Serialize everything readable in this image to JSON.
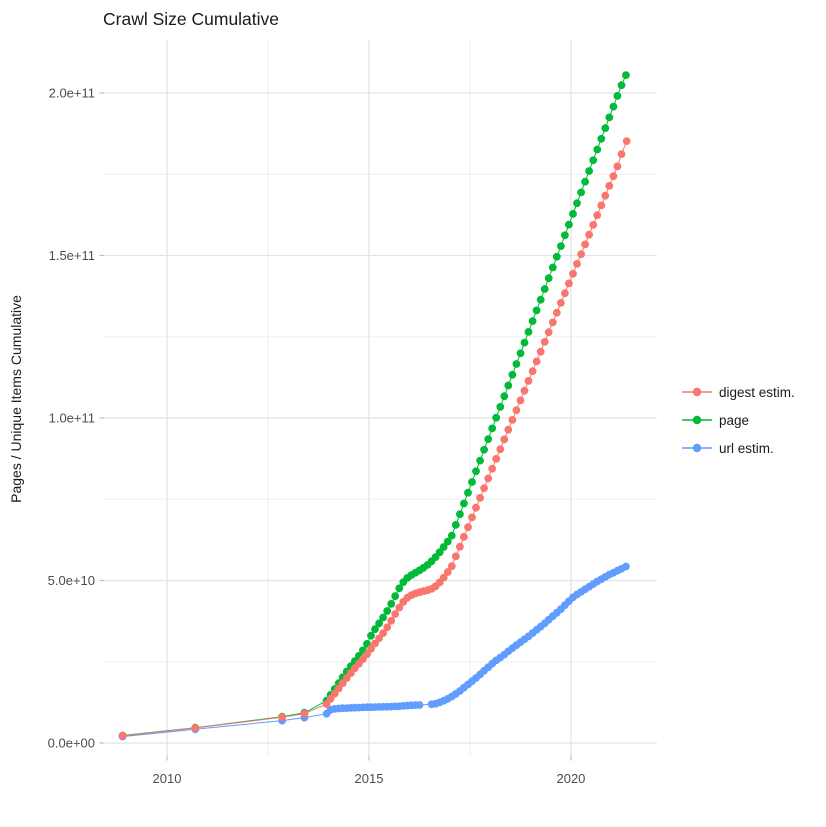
{
  "chart_data": {
    "type": "scatter",
    "title": "Crawl Size Cumulative",
    "xlabel": "",
    "ylabel": "Pages / Unique Items Cumulative",
    "grid": "on",
    "x_axis": {
      "range": [
        2008.44,
        2022.13
      ],
      "ticks": [
        2010,
        2015,
        2020
      ],
      "tick_labels": [
        "2010",
        "2015",
        "2020"
      ],
      "minor_ticks": [
        2012.5,
        2017.5
      ]
    },
    "y_axis": {
      "range": [
        -4000000000.0,
        216300000000.0
      ],
      "ticks": [
        0,
        50000000000.0,
        100000000000.0,
        150000000000.0,
        200000000000.0
      ],
      "tick_labels": [
        "0.0e+00",
        "5.0e+10",
        "1.0e+11",
        "1.5e+11",
        "2.0e+11"
      ],
      "minor_ticks": [
        25000000000.0,
        75000000000.0,
        125000000000.0,
        175000000000.0
      ]
    },
    "legend": {
      "position": "right",
      "entries": [
        {
          "label": "digest estim.",
          "color": "#F8766D"
        },
        {
          "label": "page",
          "color": "#00BA38"
        },
        {
          "label": "url estim.",
          "color": "#619CFF"
        }
      ]
    },
    "series": [
      {
        "name": "url estim.",
        "color": "#619CFF",
        "points": [
          [
            2008.9,
            2000000000.0
          ],
          [
            2010.7,
            4200000000.0
          ],
          [
            2012.85,
            6900000000.0
          ],
          [
            2013.4,
            7800000000.0
          ],
          [
            2013.95,
            9000000000.0
          ],
          [
            2014.05,
            10200000000.0
          ],
          [
            2014.15,
            10500000000.0
          ],
          [
            2014.25,
            10600000000.0
          ],
          [
            2014.35,
            10700000000.0
          ],
          [
            2014.45,
            10750000000.0
          ],
          [
            2014.55,
            10800000000.0
          ],
          [
            2014.65,
            10850000000.0
          ],
          [
            2014.75,
            10900000000.0
          ],
          [
            2014.85,
            10950000000.0
          ],
          [
            2014.95,
            11000000000.0
          ],
          [
            2015.05,
            11000000000.0
          ],
          [
            2015.15,
            11050000000.0
          ],
          [
            2015.25,
            11100000000.0
          ],
          [
            2015.35,
            11100000000.0
          ],
          [
            2015.45,
            11150000000.0
          ],
          [
            2015.55,
            11200000000.0
          ],
          [
            2015.65,
            11250000000.0
          ],
          [
            2015.75,
            11300000000.0
          ],
          [
            2015.85,
            11400000000.0
          ],
          [
            2015.95,
            11500000000.0
          ],
          [
            2016.05,
            11600000000.0
          ],
          [
            2016.15,
            11650000000.0
          ],
          [
            2016.25,
            11700000000.0
          ],
          [
            2016.55,
            11900000000.0
          ],
          [
            2016.65,
            12100000000.0
          ],
          [
            2016.75,
            12500000000.0
          ],
          [
            2016.85,
            13000000000.0
          ],
          [
            2016.95,
            13600000000.0
          ],
          [
            2017.05,
            14300000000.0
          ],
          [
            2017.15,
            15100000000.0
          ],
          [
            2017.25,
            16000000000.0
          ],
          [
            2017.35,
            17000000000.0
          ],
          [
            2017.45,
            18000000000.0
          ],
          [
            2017.55,
            19000000000.0
          ],
          [
            2017.65,
            20000000000.0
          ],
          [
            2017.75,
            21100000000.0
          ],
          [
            2017.85,
            22200000000.0
          ],
          [
            2017.95,
            23300000000.0
          ],
          [
            2018.05,
            24400000000.0
          ],
          [
            2018.15,
            25400000000.0
          ],
          [
            2018.25,
            26300000000.0
          ],
          [
            2018.35,
            27200000000.0
          ],
          [
            2018.45,
            28200000000.0
          ],
          [
            2018.55,
            29200000000.0
          ],
          [
            2018.65,
            30100000000.0
          ],
          [
            2018.75,
            31000000000.0
          ],
          [
            2018.85,
            31900000000.0
          ],
          [
            2018.95,
            32800000000.0
          ],
          [
            2019.05,
            33800000000.0
          ],
          [
            2019.15,
            34800000000.0
          ],
          [
            2019.25,
            35800000000.0
          ],
          [
            2019.35,
            36800000000.0
          ],
          [
            2019.45,
            37900000000.0
          ],
          [
            2019.55,
            39000000000.0
          ],
          [
            2019.65,
            40100000000.0
          ],
          [
            2019.75,
            41200000000.0
          ],
          [
            2019.85,
            42400000000.0
          ],
          [
            2019.95,
            43600000000.0
          ],
          [
            2020.05,
            44800000000.0
          ],
          [
            2020.15,
            45700000000.0
          ],
          [
            2020.25,
            46500000000.0
          ],
          [
            2020.35,
            47300000000.0
          ],
          [
            2020.45,
            48100000000.0
          ],
          [
            2020.55,
            48900000000.0
          ],
          [
            2020.65,
            49700000000.0
          ],
          [
            2020.75,
            50400000000.0
          ],
          [
            2020.85,
            51100000000.0
          ],
          [
            2020.95,
            51800000000.0
          ],
          [
            2021.05,
            52400000000.0
          ],
          [
            2021.15,
            53000000000.0
          ],
          [
            2021.25,
            53600000000.0
          ],
          [
            2021.36,
            54300000000.0
          ]
        ]
      },
      {
        "name": "page",
        "color": "#00BA38",
        "points": [
          [
            2008.9,
            2300000000.0
          ],
          [
            2010.7,
            4700000000.0
          ],
          [
            2012.85,
            8100000000.0
          ],
          [
            2013.4,
            9300000000.0
          ],
          [
            2013.95,
            13000000000.0
          ],
          [
            2014.05,
            14800000000.0
          ],
          [
            2014.15,
            16600000000.0
          ],
          [
            2014.25,
            18400000000.0
          ],
          [
            2014.35,
            20200000000.0
          ],
          [
            2014.45,
            22000000000.0
          ],
          [
            2014.55,
            23600000000.0
          ],
          [
            2014.65,
            25200000000.0
          ],
          [
            2014.75,
            26800000000.0
          ],
          [
            2014.85,
            28500000000.0
          ],
          [
            2014.95,
            30500000000.0
          ],
          [
            2015.05,
            33000000000.0
          ],
          [
            2015.15,
            35000000000.0
          ],
          [
            2015.25,
            36800000000.0
          ],
          [
            2015.35,
            38600000000.0
          ],
          [
            2015.45,
            40600000000.0
          ],
          [
            2015.55,
            42800000000.0
          ],
          [
            2015.65,
            45200000000.0
          ],
          [
            2015.75,
            47600000000.0
          ],
          [
            2015.85,
            49500000000.0
          ],
          [
            2015.95,
            50800000000.0
          ],
          [
            2016.05,
            51700000000.0
          ],
          [
            2016.15,
            52400000000.0
          ],
          [
            2016.25,
            53100000000.0
          ],
          [
            2016.35,
            53900000000.0
          ],
          [
            2016.45,
            54800000000.0
          ],
          [
            2016.55,
            55900000000.0
          ],
          [
            2016.65,
            57200000000.0
          ],
          [
            2016.75,
            58700000000.0
          ],
          [
            2016.85,
            60300000000.0
          ],
          [
            2016.95,
            62000000000.0
          ],
          [
            2017.05,
            63800000000.0
          ],
          [
            2017.15,
            67100000000.0
          ],
          [
            2017.25,
            70400000000.0
          ],
          [
            2017.35,
            73700000000.0
          ],
          [
            2017.45,
            77000000000.0
          ],
          [
            2017.55,
            80300000000.0
          ],
          [
            2017.65,
            83600000000.0
          ],
          [
            2017.75,
            86900000000.0
          ],
          [
            2017.85,
            90200000000.0
          ],
          [
            2017.95,
            93500000000.0
          ],
          [
            2018.05,
            96800000000.0
          ],
          [
            2018.15,
            100100000000.0
          ],
          [
            2018.25,
            103400000000.0
          ],
          [
            2018.35,
            106700000000.0
          ],
          [
            2018.45,
            110000000000.0
          ],
          [
            2018.55,
            113300000000.0
          ],
          [
            2018.65,
            116600000000.0
          ],
          [
            2018.75,
            119900000000.0
          ],
          [
            2018.85,
            123200000000.0
          ],
          [
            2018.95,
            126500000000.0
          ],
          [
            2019.05,
            129800000000.0
          ],
          [
            2019.15,
            133100000000.0
          ],
          [
            2019.25,
            136400000000.0
          ],
          [
            2019.35,
            139700000000.0
          ],
          [
            2019.45,
            143000000000.0
          ],
          [
            2019.55,
            146300000000.0
          ],
          [
            2019.65,
            149600000000.0
          ],
          [
            2019.75,
            152900000000.0
          ],
          [
            2019.85,
            156200000000.0
          ],
          [
            2019.95,
            159500000000.0
          ],
          [
            2020.05,
            162800000000.0
          ],
          [
            2020.15,
            166100000000.0
          ],
          [
            2020.25,
            169400000000.0
          ],
          [
            2020.35,
            172700000000.0
          ],
          [
            2020.45,
            176000000000.0
          ],
          [
            2020.55,
            179300000000.0
          ],
          [
            2020.65,
            182600000000.0
          ],
          [
            2020.75,
            185900000000.0
          ],
          [
            2020.85,
            189200000000.0
          ],
          [
            2020.95,
            192500000000.0
          ],
          [
            2021.05,
            195800000000.0
          ],
          [
            2021.15,
            199100000000.0
          ],
          [
            2021.25,
            202400000000.0
          ],
          [
            2021.36,
            205500000000.0
          ]
        ]
      },
      {
        "name": "digest estim.",
        "color": "#F8766D",
        "points": [
          [
            2008.9,
            2200000000.0
          ],
          [
            2010.7,
            4600000000.0
          ],
          [
            2012.85,
            7900000000.0
          ],
          [
            2013.4,
            9000000000.0
          ],
          [
            2013.95,
            12000000000.0
          ],
          [
            2014.05,
            13600000000.0
          ],
          [
            2014.15,
            15200000000.0
          ],
          [
            2014.25,
            16800000000.0
          ],
          [
            2014.35,
            18400000000.0
          ],
          [
            2014.45,
            20000000000.0
          ],
          [
            2014.55,
            21500000000.0
          ],
          [
            2014.65,
            23000000000.0
          ],
          [
            2014.75,
            24400000000.0
          ],
          [
            2014.85,
            25800000000.0
          ],
          [
            2014.95,
            27300000000.0
          ],
          [
            2015.05,
            29000000000.0
          ],
          [
            2015.15,
            30600000000.0
          ],
          [
            2015.25,
            32200000000.0
          ],
          [
            2015.35,
            33800000000.0
          ],
          [
            2015.45,
            35600000000.0
          ],
          [
            2015.55,
            37600000000.0
          ],
          [
            2015.65,
            39700000000.0
          ],
          [
            2015.75,
            41700000000.0
          ],
          [
            2015.85,
            43400000000.0
          ],
          [
            2015.95,
            44700000000.0
          ],
          [
            2016.05,
            45500000000.0
          ],
          [
            2016.15,
            46000000000.0
          ],
          [
            2016.25,
            46400000000.0
          ],
          [
            2016.35,
            46700000000.0
          ],
          [
            2016.45,
            47000000000.0
          ],
          [
            2016.55,
            47400000000.0
          ],
          [
            2016.65,
            48200000000.0
          ],
          [
            2016.75,
            49400000000.0
          ],
          [
            2016.85,
            50900000000.0
          ],
          [
            2016.95,
            52600000000.0
          ],
          [
            2017.05,
            54400000000.0
          ],
          [
            2017.15,
            57400000000.0
          ],
          [
            2017.25,
            60400000000.0
          ],
          [
            2017.35,
            63400000000.0
          ],
          [
            2017.45,
            66400000000.0
          ],
          [
            2017.55,
            69400000000.0
          ],
          [
            2017.65,
            72400000000.0
          ],
          [
            2017.75,
            75400000000.0
          ],
          [
            2017.85,
            78400000000.0
          ],
          [
            2017.95,
            81400000000.0
          ],
          [
            2018.05,
            84400000000.0
          ],
          [
            2018.15,
            87400000000.0
          ],
          [
            2018.25,
            90400000000.0
          ],
          [
            2018.35,
            93400000000.0
          ],
          [
            2018.45,
            96400000000.0
          ],
          [
            2018.55,
            99400000000.0
          ],
          [
            2018.65,
            102400000000.0
          ],
          [
            2018.75,
            105400000000.0
          ],
          [
            2018.85,
            108400000000.0
          ],
          [
            2018.95,
            111400000000.0
          ],
          [
            2019.05,
            114400000000.0
          ],
          [
            2019.15,
            117400000000.0
          ],
          [
            2019.25,
            120400000000.0
          ],
          [
            2019.35,
            123400000000.0
          ],
          [
            2019.45,
            126400000000.0
          ],
          [
            2019.55,
            129400000000.0
          ],
          [
            2019.65,
            132400000000.0
          ],
          [
            2019.75,
            135400000000.0
          ],
          [
            2019.85,
            138400000000.0
          ],
          [
            2019.95,
            141400000000.0
          ],
          [
            2020.05,
            144400000000.0
          ],
          [
            2020.15,
            147400000000.0
          ],
          [
            2020.25,
            150400000000.0
          ],
          [
            2020.35,
            153400000000.0
          ],
          [
            2020.45,
            156400000000.0
          ],
          [
            2020.55,
            159400000000.0
          ],
          [
            2020.65,
            162400000000.0
          ],
          [
            2020.75,
            165400000000.0
          ],
          [
            2020.85,
            168400000000.0
          ],
          [
            2020.95,
            171400000000.0
          ],
          [
            2021.05,
            174400000000.0
          ],
          [
            2021.15,
            177400000000.0
          ],
          [
            2021.25,
            181200000000.0
          ],
          [
            2021.38,
            185200000000.0
          ]
        ]
      }
    ],
    "style": {
      "background": "#ffffff",
      "grid_major_color": "#e4e4e4",
      "grid_minor_color": "#efefef",
      "tick_mark_color": "#bfbfbf",
      "point_radius": 3.9,
      "line_width": 1
    }
  }
}
